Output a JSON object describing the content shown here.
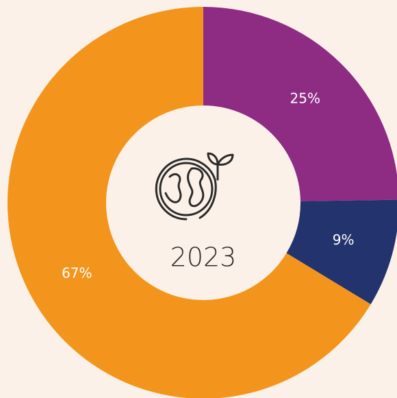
{
  "chart_data": {
    "type": "pie",
    "values": [
      25,
      9,
      67
    ],
    "value_labels": [
      "25%",
      "9%",
      "67%"
    ],
    "colors": [
      "#8e2c84",
      "#23336e",
      "#f3951d"
    ],
    "center_label": "2023"
  }
}
